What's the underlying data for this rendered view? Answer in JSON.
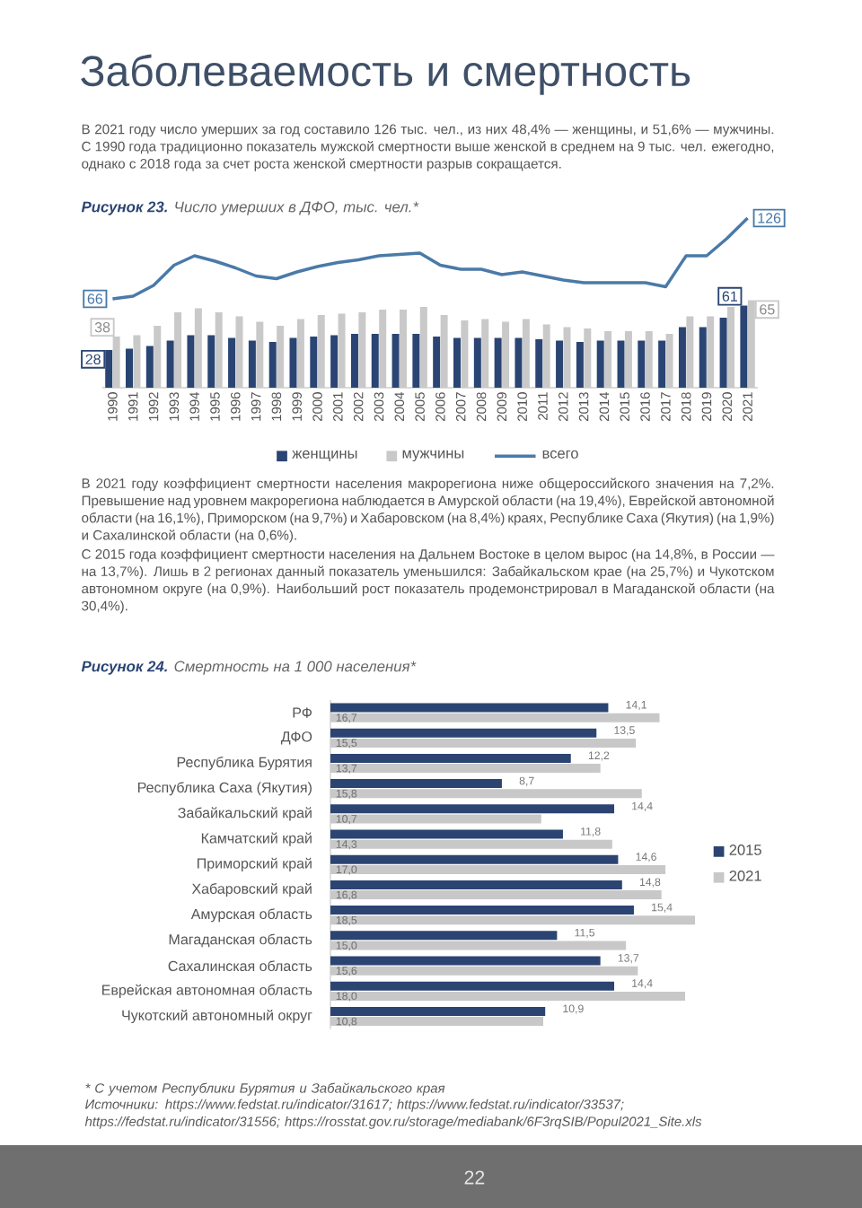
{
  "chart_data": [
    {
      "type": "other",
      "title": "Заболеваемость и смертность",
      "annotations": [
        "В 2021 году число умерших за год составило 126 тыс. чел., из них 48,4% — женщины, и 51,6% — мужчины. С 1990 года традиционно показатель мужской смертности выше женской в среднем на 9 тыс. чел. ежегодно, однако с 2018 года за счет роста женской смертности разрыв сокращается."
      ]
    },
    {
      "type": "bar",
      "title": "**Рисунок 23.** Число умерших в ДФО, тыс. чел.*",
      "categories": [
        "1990",
        "1991",
        "1992",
        "1993",
        "1994",
        "1995",
        "1996",
        "1997",
        "1998",
        "1999",
        "2000",
        "2001",
        "2002",
        "2003",
        "2004",
        "2005",
        "2006",
        "2007",
        "2008",
        "2009",
        "2010",
        "2011",
        "2012",
        "2013",
        "2014",
        "2015",
        "2016",
        "2017",
        "2018",
        "2019",
        "2020",
        "2021"
      ],
      "series": [
        {
          "name": "женщины",
          "color": "#2a4573",
          "values": [
            28,
            29,
            31,
            35,
            39,
            39,
            37,
            35,
            34,
            37,
            38,
            39,
            40,
            40,
            40,
            40,
            38,
            37,
            37,
            37,
            37,
            36,
            35,
            34,
            35,
            35,
            35,
            35,
            45,
            45,
            52,
            61
          ],
          "value_labels": [
            "28",
            null,
            null,
            null,
            null,
            null,
            null,
            null,
            null,
            null,
            null,
            null,
            null,
            null,
            null,
            null,
            null,
            null,
            null,
            null,
            null,
            null,
            null,
            null,
            null,
            null,
            null,
            null,
            null,
            null,
            null,
            "61"
          ]
        },
        {
          "name": "мужчины",
          "color": "#c9c9c9",
          "values": [
            38,
            39,
            46,
            56,
            59,
            56,
            53,
            49,
            46,
            51,
            54,
            55,
            56,
            58,
            58,
            60,
            54,
            50,
            51,
            49,
            51,
            47,
            45,
            44,
            42,
            42,
            42,
            40,
            53,
            53,
            60,
            65
          ],
          "value_labels": [
            "38",
            null,
            null,
            null,
            null,
            null,
            null,
            null,
            null,
            null,
            null,
            null,
            null,
            null,
            null,
            null,
            null,
            null,
            null,
            null,
            null,
            null,
            null,
            null,
            null,
            null,
            null,
            null,
            null,
            null,
            null,
            "65"
          ]
        },
        {
          "name": "всего",
          "type": "line",
          "color": "#4a7aa8",
          "values": [
            66,
            68,
            76,
            91,
            98,
            94,
            89,
            83,
            81,
            86,
            90,
            93,
            95,
            98,
            99,
            100,
            91,
            88,
            88,
            84,
            86,
            83,
            80,
            78,
            78,
            78,
            78,
            75,
            98,
            98,
            111,
            126
          ],
          "value_labels": [
            "66",
            null,
            null,
            null,
            null,
            null,
            null,
            null,
            null,
            null,
            null,
            null,
            null,
            null,
            null,
            null,
            null,
            null,
            null,
            null,
            null,
            null,
            null,
            null,
            null,
            null,
            null,
            null,
            null,
            null,
            null,
            "126"
          ]
        }
      ],
      "tick_labels": "x",
      "legend": "bottom"
    },
    {
      "type": "other",
      "annotations": [
        "В 2021 году коэффициент смертности населения макрорегиона ниже общероссийского значения на 7,2%. Превышение над уровнем макрорегиона наблюдается в Амурской области (на 19,4%), Еврейской автономной области (на 16,1%), Приморском (на 9,7%) и Хабаровском (на 8,4%) краях, Республике Саха (Якутия) (на 1,9%) и Сахалинской области (на 0,6%).",
        "С 2015 года коэффициент смертности населения на Дальнем Востоке в целом вырос (на 14,8%, в России — на 13,7%). Лишь в 2 регионах данный показатель уменьшился: Забайкальском крае (на 25,7%) и Чукотском автономном округе (на 0,9%). Наибольший рост показатель продемонстрировал в Магаданской области (на 30,4%)."
      ]
    },
    {
      "type": "bar",
      "title": "**Рисунок 24.** Смертность на 1 000 населения*",
      "orientation": "horizontal",
      "categories": [
        "РФ",
        "ДФО",
        "Республика Бурятия",
        "Республика Саха (Якутия)",
        "Забайкальский край",
        "Камчатский край",
        "Приморский край",
        "Хабаровский край",
        "Амурская область",
        "Магаданская область",
        "Сахалинская область",
        "Еврейская автономная область",
        "Чукотский автономный округ"
      ],
      "series": [
        {
          "name": "2015",
          "color": "#2b4472",
          "values": [
            14.1,
            13.5,
            12.2,
            8.7,
            14.4,
            11.8,
            14.6,
            14.8,
            15.4,
            11.5,
            13.7,
            14.4,
            10.9
          ],
          "value_labels": [
            "14,1",
            "13,5",
            "12,2",
            "8,7",
            "14,4",
            "11,8",
            "14,6",
            "14,8",
            "15,4",
            "11,5",
            "13,7",
            "14,4",
            "10,9"
          ]
        },
        {
          "name": "2021",
          "color": "#c8c8c8",
          "values": [
            16.7,
            15.5,
            13.7,
            15.8,
            10.7,
            14.3,
            17.0,
            16.8,
            18.5,
            15.0,
            15.6,
            18.0,
            10.8
          ],
          "value_labels": [
            "16,7",
            "15,5",
            "13,7",
            "15,8",
            "10,7",
            "14,3",
            "17,0",
            "16,8",
            "18,5",
            "15,0",
            "15,6",
            "18,0",
            "10,8"
          ]
        }
      ],
      "tick_labels": "y",
      "legend": "right",
      "annotations": [
        "* С учетом Республики Бурятия и Забайкальского края",
        "Источники: https://www.fedstat.ru/indicator/31617; https://www.fedstat.ru/indicator/33537; https://fedstat.ru/indicator/31556; https://rosstat.gov.ru/storage/mediabank/6F3rqSIB/Popul2021_Site.xls"
      ]
    },
    {
      "type": "other",
      "annotations": [
        "22"
      ]
    }
  ]
}
